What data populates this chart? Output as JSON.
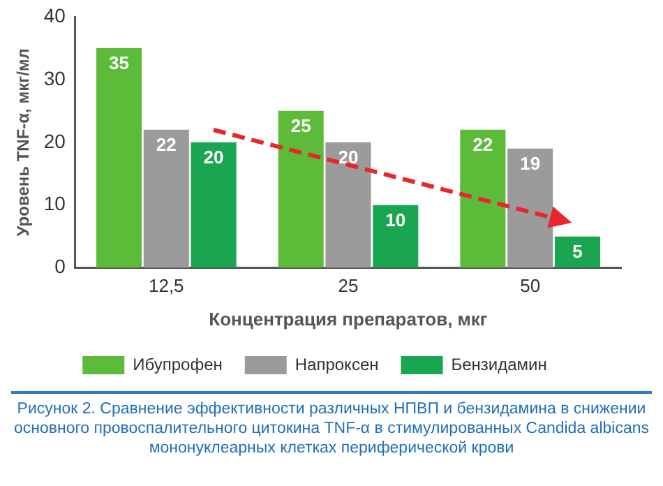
{
  "chart_data": {
    "type": "bar",
    "xlabel": "Концентрация препаратов, мкг",
    "ylabel": "Уровень TNF-α, мкг/мл",
    "categories": [
      "12,5",
      "25",
      "50"
    ],
    "series": [
      {
        "name": "Ибупрофен",
        "color": "#5dbb3a",
        "values": [
          35,
          25,
          22
        ]
      },
      {
        "name": "Напроксен",
        "color": "#9b9b9b",
        "values": [
          22,
          20,
          19
        ]
      },
      {
        "name": "Бензидамин",
        "color": "#1aa650",
        "values": [
          20,
          10,
          5
        ]
      }
    ],
    "ylim": [
      0,
      40
    ],
    "yticks": [
      0,
      10,
      20,
      30,
      40
    ],
    "grid": false,
    "legend": "bottom",
    "data_labels": true,
    "annotations": [
      "Рисунок 2. Сравнение эффективности различных НПВП и бензидамина в снижении основного провоспалительного цитокина TNF-α в стимулированных Candida albicans мононуклеарных клетках периферической крови"
    ]
  }
}
